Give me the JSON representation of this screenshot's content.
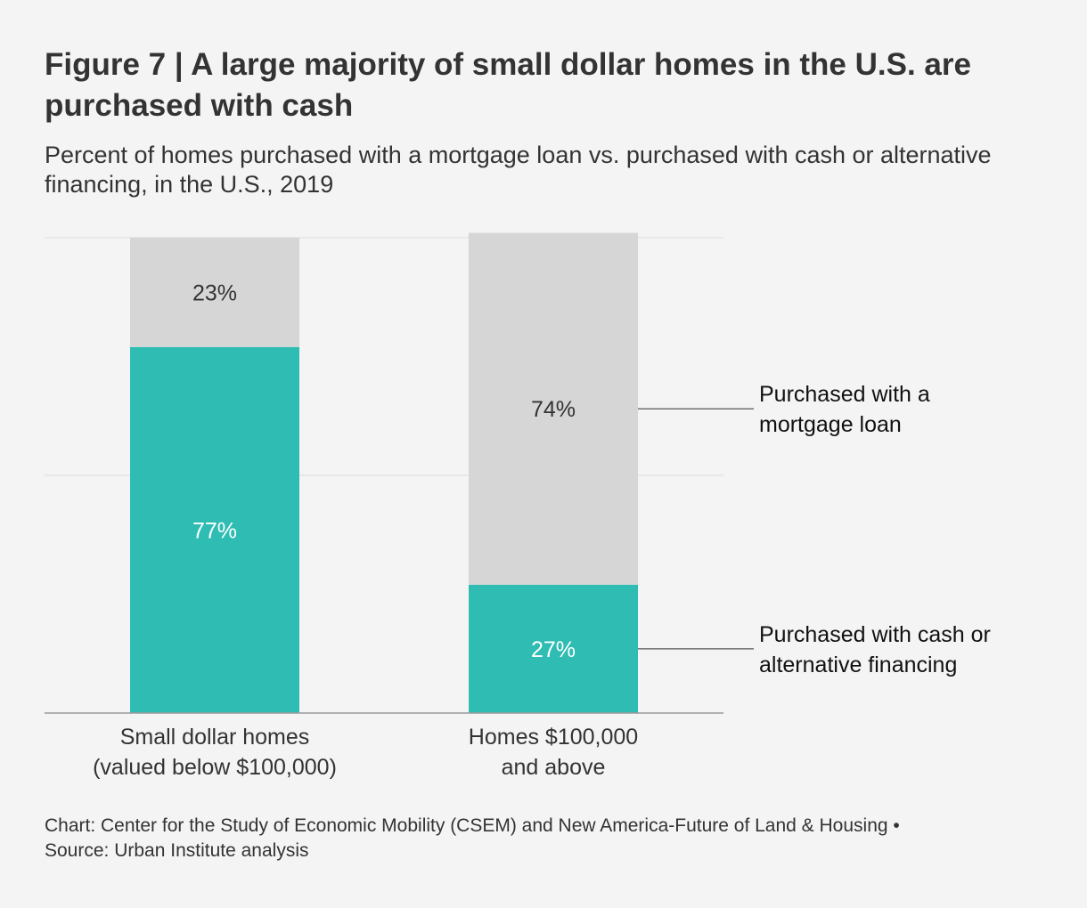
{
  "title": "Figure 7 | A large majority of small dollar homes in the U.S. are purchased with cash",
  "subtitle": "Percent of homes purchased with a mortgage loan vs. purchased with cash or alternative financing, in the U.S., 2019",
  "footer": {
    "line1": "Chart: Center for the Study of Economic Mobility (CSEM) and New America-Future of Land & Housing •",
    "line2": "Source: Urban Institute analysis"
  },
  "colors": {
    "cash": "#2ebcb3",
    "mortgage": "#d6d6d6",
    "gridline": "#e0e0e0",
    "axis": "#9a9a9a",
    "text": "#333333"
  },
  "chart_data": {
    "type": "bar",
    "stacked": true,
    "ylim": [
      0,
      100
    ],
    "categories": [
      [
        "Small dollar homes",
        "(valued below $100,000)"
      ],
      [
        "Homes $100,000",
        "and above"
      ]
    ],
    "series": [
      {
        "name": "Purchased with cash or alternative financing",
        "legend_lines": [
          "Purchased with cash or",
          "alternative financing"
        ],
        "color_key": "cash",
        "values": [
          77,
          27
        ],
        "value_labels": [
          "77%",
          "27%"
        ],
        "label_color": "#ffffff"
      },
      {
        "name": "Purchased with a mortgage loan",
        "legend_lines": [
          "Purchased with a",
          "mortgage loan"
        ],
        "color_key": "mortgage",
        "values": [
          23,
          74
        ],
        "value_labels": [
          "23%",
          "74%"
        ],
        "label_color": "#333333"
      }
    ],
    "gridlines": [
      50,
      100
    ],
    "legend_placement": "right, attached to the second bar"
  }
}
